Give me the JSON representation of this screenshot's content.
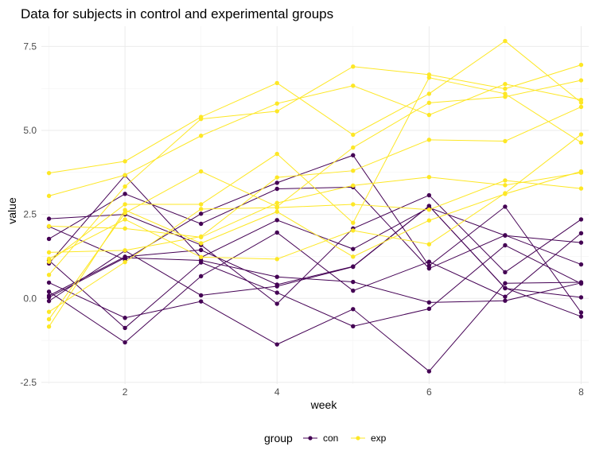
{
  "chart_data": {
    "type": "line",
    "title": "Data for subjects in control and experimental groups",
    "xlabel": "week",
    "ylabel": "value",
    "x": [
      1,
      2,
      3,
      4,
      5,
      6,
      7,
      8
    ],
    "xlim": [
      0.9,
      8.1
    ],
    "ylim": [
      -2.55,
      8.1
    ],
    "xticks": [
      2,
      4,
      6,
      8
    ],
    "xtick_labels": [
      "2",
      "4",
      "6",
      "8"
    ],
    "yticks": [
      -2.5,
      0,
      2.5,
      5,
      7.5
    ],
    "ytick_labels": [
      "-2.5",
      "0.0",
      "2.5",
      "5.0",
      "7.5"
    ],
    "grid": true,
    "legend": {
      "title": "group",
      "position": "bottom",
      "entries": [
        {
          "label": "con",
          "color": "#440154"
        },
        {
          "label": "exp",
          "color": "#fde725"
        }
      ]
    },
    "series": [
      {
        "group": "con",
        "color": "#440154",
        "values": [
          0.2,
          -1.31,
          0.66,
          1.96,
          0.23,
          1.09,
          0.05,
          1.94
        ]
      },
      {
        "group": "con",
        "color": "#440154",
        "values": [
          1.13,
          -0.88,
          1.07,
          0.17,
          -0.83,
          -0.31,
          1.58,
          0.44
        ]
      },
      {
        "group": "con",
        "color": "#440154",
        "values": [
          1.77,
          3.11,
          2.22,
          3.26,
          3.31,
          0.89,
          1.88,
          1.01
        ]
      },
      {
        "group": "con",
        "color": "#440154",
        "values": [
          1.04,
          3.66,
          1.22,
          2.33,
          1.47,
          2.7,
          1.87,
          1.66
        ]
      },
      {
        "group": "con",
        "color": "#440154",
        "values": [
          0.47,
          -0.58,
          -0.09,
          -1.37,
          -0.32,
          -2.17,
          0.45,
          0.48
        ]
      },
      {
        "group": "con",
        "color": "#440154",
        "values": [
          2.37,
          2.5,
          1.59,
          -0.16,
          2.08,
          3.07,
          0.78,
          2.35
        ]
      },
      {
        "group": "con",
        "color": "#440154",
        "values": [
          0.03,
          1.21,
          1.13,
          0.64,
          0.49,
          -0.12,
          -0.07,
          0.46
        ]
      },
      {
        "group": "con",
        "color": "#440154",
        "values": [
          -0.08,
          1.42,
          0.09,
          0.36,
          0.94,
          2.75,
          0.31,
          -0.54
        ]
      },
      {
        "group": "con",
        "color": "#440154",
        "values": [
          0.08,
          1.24,
          1.44,
          0.41,
          0.95,
          2.75,
          0.3,
          0.03
        ]
      },
      {
        "group": "con",
        "color": "#440154",
        "values": [
          2.14,
          1.15,
          2.52,
          3.44,
          4.26,
          0.97,
          2.73,
          -0.42
        ]
      },
      {
        "group": "exp",
        "color": "#fde725",
        "values": [
          3.05,
          3.67,
          4.84,
          5.8,
          6.33,
          5.46,
          6.38,
          5.91
        ]
      },
      {
        "group": "exp",
        "color": "#fde725",
        "values": [
          -0.84,
          2.63,
          1.64,
          2.58,
          1.24,
          2.32,
          3.11,
          3.78
        ]
      },
      {
        "group": "exp",
        "color": "#fde725",
        "values": [
          2.15,
          2.08,
          1.82,
          2.84,
          3.36,
          3.61,
          3.37,
          3.74
        ]
      },
      {
        "group": "exp",
        "color": "#fde725",
        "values": [
          -0.62,
          2.54,
          3.78,
          2.73,
          4.49,
          5.82,
          6.0,
          6.49
        ]
      },
      {
        "group": "exp",
        "color": "#fde725",
        "values": [
          0.7,
          3.33,
          5.34,
          5.57,
          6.9,
          6.66,
          6.24,
          6.95
        ]
      },
      {
        "group": "exp",
        "color": "#fde725",
        "values": [
          3.73,
          4.08,
          5.4,
          6.41,
          4.87,
          6.09,
          7.66,
          5.83
        ]
      },
      {
        "group": "exp",
        "color": "#fde725",
        "values": [
          1.18,
          2.35,
          1.23,
          1.17,
          2.02,
          1.61,
          3.13,
          4.88
        ]
      },
      {
        "group": "exp",
        "color": "#fde725",
        "values": [
          1.37,
          1.43,
          1.84,
          3.6,
          3.8,
          4.72,
          4.68,
          5.7
        ]
      },
      {
        "group": "exp",
        "color": "#fde725",
        "values": [
          -0.4,
          1.08,
          2.66,
          2.7,
          2.8,
          2.64,
          3.51,
          3.27
        ]
      },
      {
        "group": "exp",
        "color": "#fde725",
        "values": [
          1.09,
          2.8,
          2.8,
          4.3,
          2.25,
          6.57,
          6.09,
          4.64
        ]
      }
    ]
  }
}
